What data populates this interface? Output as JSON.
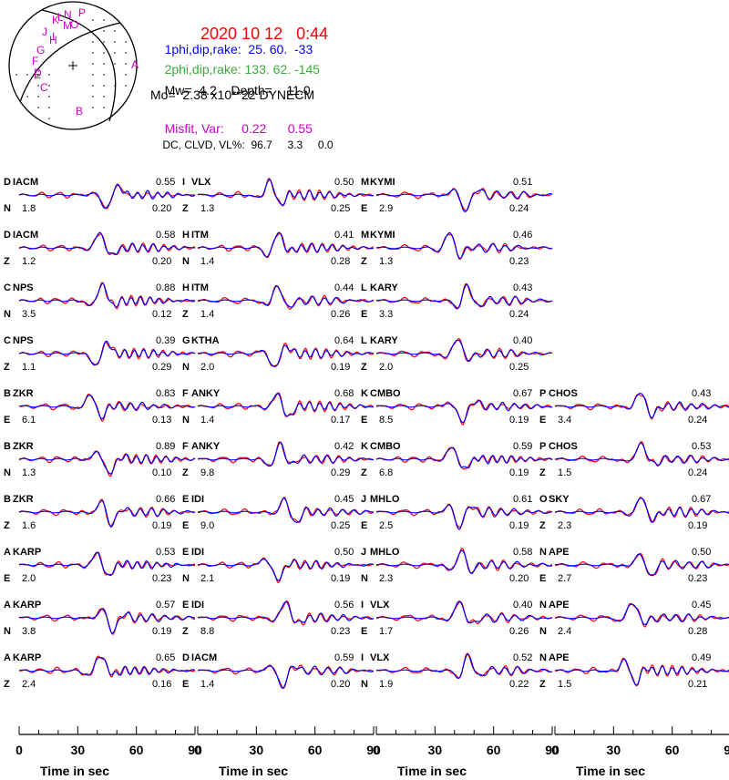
{
  "header": {
    "date": "2020 10 12",
    "time": "0:44",
    "np1_label": "1phi,dip,rake:",
    "np1_values": "25. 60.  -33",
    "np2_label": "2phi,dip,rake:",
    "np2_values": "133. 62. -145",
    "mw_label": "Mw=",
    "mw": "4.2",
    "depth_label": "Depth=",
    "depth": "11.0",
    "mo": "Mo=  2.38 x10**22 DYNECM",
    "misfit_label": "Misfit, Var:",
    "misfit": "0.22",
    "var": "0.55",
    "dc_label": "DC, CLVD, VL%:",
    "dc": "96.7",
    "clvd": "3.3",
    "vl": "0.0"
  },
  "beachball": {
    "station_letters": [
      "P",
      "N",
      "K",
      "L",
      "M",
      "O",
      "J",
      "I",
      "H",
      "G",
      "F",
      "E",
      "D",
      "C",
      "A",
      "B"
    ]
  },
  "colors": {
    "observed": "#ff0000",
    "synthetic": "#0000ff",
    "title_red": "#ff0000",
    "np1_blue": "#0000ff",
    "np2_green": "#3aa83a",
    "magenta": "#cc00cc",
    "text": "#000000"
  },
  "time_axis": {
    "label": "Time  in sec",
    "ticks": [
      "0",
      "30",
      "60",
      "90"
    ],
    "xlim": [
      0,
      90
    ]
  },
  "chart_data": {
    "type": "line",
    "description_series": [
      "observed",
      "synthetic"
    ],
    "xlim": [
      0,
      90
    ],
    "columns": [
      {
        "panels": [
          {
            "sta_id": "D",
            "station": "IACM",
            "comp": "N",
            "amp": "1.8",
            "vr": "0.55",
            "shift": "0.20"
          },
          {
            "sta_id": "D",
            "station": "IACM",
            "comp": "Z",
            "amp": "1.2",
            "vr": "0.58",
            "shift": "0.20"
          },
          {
            "sta_id": "C",
            "station": "NPS",
            "comp": "N",
            "amp": "3.5",
            "vr": "0.88",
            "shift": "0.12"
          },
          {
            "sta_id": "C",
            "station": "NPS",
            "comp": "Z",
            "amp": "1.1",
            "vr": "0.39",
            "shift": "0.29"
          },
          {
            "sta_id": "B",
            "station": "ZKR",
            "comp": "E",
            "amp": "6.1",
            "vr": "0.83",
            "shift": "0.13"
          },
          {
            "sta_id": "B",
            "station": "ZKR",
            "comp": "N",
            "amp": "1.3",
            "vr": "0.89",
            "shift": "0.10"
          },
          {
            "sta_id": "B",
            "station": "ZKR",
            "comp": "Z",
            "amp": "1.6",
            "vr": "0.66",
            "shift": "0.19"
          },
          {
            "sta_id": "A",
            "station": "KARP",
            "comp": "E",
            "amp": "2.0",
            "vr": "0.53",
            "shift": "0.23"
          },
          {
            "sta_id": "A",
            "station": "KARP",
            "comp": "N",
            "amp": "3.8",
            "vr": "0.57",
            "shift": "0.19"
          },
          {
            "sta_id": "A",
            "station": "KARP",
            "comp": "Z",
            "amp": "2.4",
            "vr": "0.65",
            "shift": "0.16"
          }
        ]
      },
      {
        "panels": [
          {
            "sta_id": "I",
            "station": "VLX",
            "comp": "Z",
            "amp": "1.3",
            "vr": "0.50",
            "shift": "0.25"
          },
          {
            "sta_id": "H",
            "station": "ITM",
            "comp": "N",
            "amp": "1.4",
            "vr": "0.41",
            "shift": "0.28"
          },
          {
            "sta_id": "H",
            "station": "ITM",
            "comp": "Z",
            "amp": "1.4",
            "vr": "0.44",
            "shift": "0.26"
          },
          {
            "sta_id": "G",
            "station": "KTHA",
            "comp": "N",
            "amp": "2.0",
            "vr": "0.64",
            "shift": "0.19"
          },
          {
            "sta_id": "F",
            "station": "ANKY",
            "comp": "N",
            "amp": "1.4",
            "vr": "0.68",
            "shift": "0.17"
          },
          {
            "sta_id": "F",
            "station": "ANKY",
            "comp": "Z",
            "amp": "9.8",
            "vr": "0.42",
            "shift": "0.29"
          },
          {
            "sta_id": "E",
            "station": "IDI",
            "comp": "E",
            "amp": "9.0",
            "vr": "0.45",
            "shift": "0.25"
          },
          {
            "sta_id": "E",
            "station": "IDI",
            "comp": "N",
            "amp": "2.1",
            "vr": "0.50",
            "shift": "0.19"
          },
          {
            "sta_id": "E",
            "station": "IDI",
            "comp": "Z",
            "amp": "8.8",
            "vr": "0.56",
            "shift": "0.23"
          },
          {
            "sta_id": "D",
            "station": "IACM",
            "comp": "E",
            "amp": "1.4",
            "vr": "0.59",
            "shift": "0.20"
          }
        ]
      },
      {
        "panels": [
          {
            "sta_id": "M",
            "station": "KYMI",
            "comp": "E",
            "amp": "2.9",
            "vr": "0.51",
            "shift": "0.24"
          },
          {
            "sta_id": "M",
            "station": "KYMI",
            "comp": "Z",
            "amp": "1.3",
            "vr": "0.46",
            "shift": "0.23"
          },
          {
            "sta_id": "L",
            "station": "KARY",
            "comp": "E",
            "amp": "3.3",
            "vr": "0.43",
            "shift": "0.24"
          },
          {
            "sta_id": "L",
            "station": "KARY",
            "comp": "Z",
            "amp": "2.0",
            "vr": "0.40",
            "shift": "0.25"
          },
          {
            "sta_id": "K",
            "station": "CMBO",
            "comp": "E",
            "amp": "8.5",
            "vr": "0.67",
            "shift": "0.19"
          },
          {
            "sta_id": "K",
            "station": "CMBO",
            "comp": "Z",
            "amp": "6.8",
            "vr": "0.59",
            "shift": "0.19"
          },
          {
            "sta_id": "J",
            "station": "MHLO",
            "comp": "E",
            "amp": "2.5",
            "vr": "0.61",
            "shift": "0.19"
          },
          {
            "sta_id": "J",
            "station": "MHLO",
            "comp": "N",
            "amp": "2.3",
            "vr": "0.58",
            "shift": "0.20"
          },
          {
            "sta_id": "I",
            "station": "VLX",
            "comp": "E",
            "amp": "1.7",
            "vr": "0.40",
            "shift": "0.26"
          },
          {
            "sta_id": "I",
            "station": "VLX",
            "comp": "N",
            "amp": "1.9",
            "vr": "0.52",
            "shift": "0.22"
          }
        ]
      },
      {
        "panels": [
          null,
          null,
          null,
          null,
          {
            "sta_id": "P",
            "station": "CHOS",
            "comp": "E",
            "amp": "3.4",
            "vr": "0.43",
            "shift": "0.24"
          },
          {
            "sta_id": "P",
            "station": "CHOS",
            "comp": "Z",
            "amp": "1.5",
            "vr": "0.53",
            "shift": "0.24"
          },
          {
            "sta_id": "O",
            "station": "SKY",
            "comp": "Z",
            "amp": "2.3",
            "vr": "0.67",
            "shift": "0.19"
          },
          {
            "sta_id": "N",
            "station": "APE",
            "comp": "E",
            "amp": "2.7",
            "vr": "0.50",
            "shift": "0.23"
          },
          {
            "sta_id": "N",
            "station": "APE",
            "comp": "N",
            "amp": "2.4",
            "vr": "0.45",
            "shift": "0.28"
          },
          {
            "sta_id": "N",
            "station": "APE",
            "comp": "Z",
            "amp": "1.5",
            "vr": "0.49",
            "shift": "0.21"
          }
        ]
      }
    ]
  }
}
